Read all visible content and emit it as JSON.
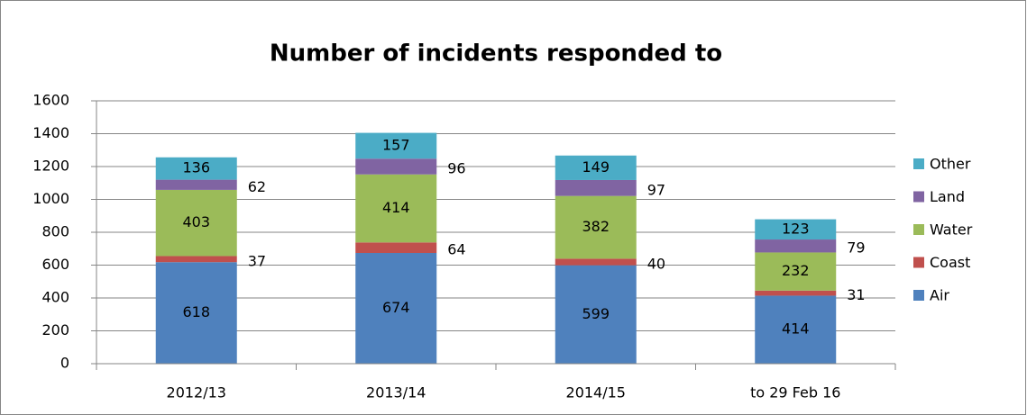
{
  "chart_data": {
    "type": "stacked_bar",
    "title": "Number of incidents responded to",
    "categories": [
      "2012/13",
      "2013/14",
      "2014/15",
      "to 29 Feb 16"
    ],
    "series": [
      {
        "name": "Air",
        "color": "#4f81bd",
        "values": [
          618,
          674,
          599,
          414
        ]
      },
      {
        "name": "Coast",
        "color": "#c0504d",
        "values": [
          37,
          64,
          40,
          31
        ]
      },
      {
        "name": "Water",
        "color": "#9bbb59",
        "values": [
          403,
          414,
          382,
          232
        ]
      },
      {
        "name": "Land",
        "color": "#8064a2",
        "values": [
          62,
          96,
          97,
          79
        ]
      },
      {
        "name": "Other",
        "color": "#4bacc6",
        "values": [
          136,
          157,
          149,
          123
        ]
      }
    ],
    "ylim": [
      0,
      1600
    ],
    "yticks": [
      0,
      200,
      400,
      600,
      800,
      1000,
      1200,
      1400,
      1600
    ],
    "grid": true,
    "legend": "right"
  }
}
